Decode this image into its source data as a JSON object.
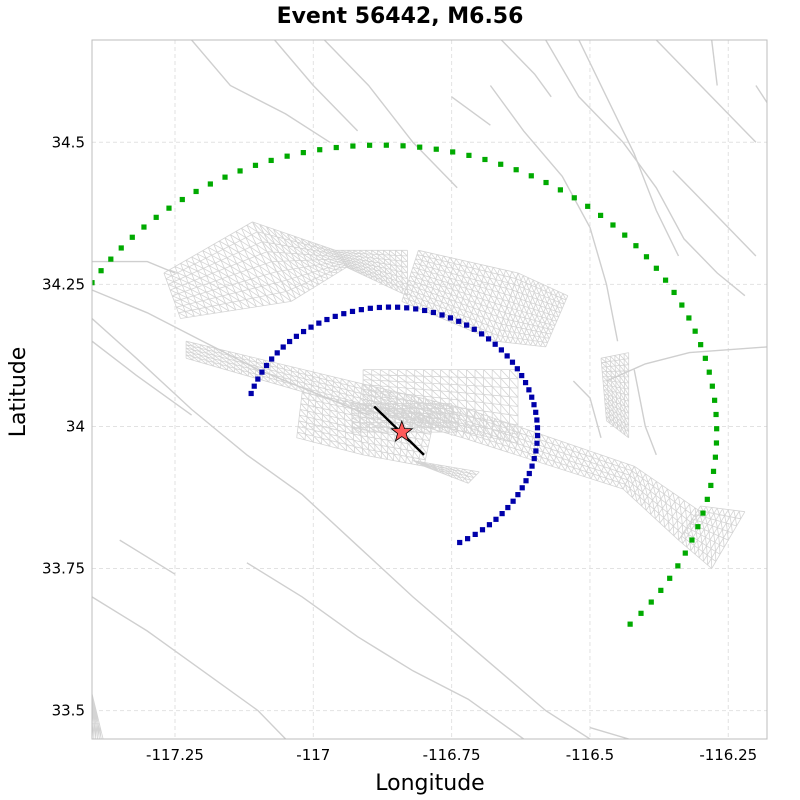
{
  "chart_data": {
    "type": "scatter",
    "title": "Event 56442, M6.56",
    "xlabel": "Longitude",
    "ylabel": "Latitude",
    "xlim": [
      -117.4,
      -116.18
    ],
    "ylim": [
      33.45,
      34.68
    ],
    "x_ticks": [
      -117.25,
      -117,
      -116.75,
      -116.5,
      -116.25
    ],
    "x_tick_labels": [
      "-117.25",
      "-117",
      "-116.75",
      "-116.5",
      "-116.25"
    ],
    "y_ticks": [
      33.5,
      33.75,
      34,
      34.25,
      34.5
    ],
    "y_tick_labels": [
      "33.5",
      "33.75",
      "34",
      "34.25",
      "34.5"
    ],
    "grid": true,
    "legend": "none",
    "colors": {
      "inner_arc": "#0000aa",
      "outer_arc": "#00aa00",
      "faults": "#cfcfcf",
      "epicenter": "#ff5a5a",
      "rupture_trace": "#000000"
    },
    "series": [
      {
        "color": "#0000aa",
        "marker": "square",
        "arc": {
          "center": [
            -116.86,
            33.99
          ],
          "radius_deg": 0.22,
          "start_angle_deg": 162,
          "end_angle_deg": -62,
          "points": 64
        }
      },
      {
        "color": "#00aa00",
        "marker": "square",
        "arc": {
          "center": [
            -116.88,
            33.99
          ],
          "radius_deg": 0.505,
          "start_angle_deg": 160,
          "end_angle_deg": -42,
          "points": 72
        }
      }
    ],
    "epicenter": {
      "lon": -116.84,
      "lat": 33.99,
      "marker": "star"
    },
    "rupture_trace": [
      [
        -116.89,
        34.035
      ],
      [
        -116.8,
        33.95
      ]
    ],
    "fault_traces": [
      [
        [
          -117.22,
          34.68
        ],
        [
          -117.15,
          34.6
        ],
        [
          -117.05,
          34.55
        ],
        [
          -116.97,
          34.5
        ]
      ],
      [
        [
          -117.07,
          34.68
        ],
        [
          -117.0,
          34.6
        ],
        [
          -116.92,
          34.52
        ]
      ],
      [
        [
          -116.98,
          34.68
        ],
        [
          -116.9,
          34.6
        ],
        [
          -116.82,
          34.5
        ],
        [
          -116.74,
          34.42
        ]
      ],
      [
        [
          -116.68,
          34.6
        ],
        [
          -116.62,
          34.52
        ],
        [
          -116.55,
          34.44
        ],
        [
          -116.5,
          34.35
        ],
        [
          -116.47,
          34.25
        ],
        [
          -116.45,
          34.15
        ]
      ],
      [
        [
          -116.58,
          34.68
        ],
        [
          -116.52,
          34.58
        ],
        [
          -116.44,
          34.5
        ],
        [
          -116.38,
          34.42
        ],
        [
          -116.33,
          34.33
        ],
        [
          -116.27,
          34.27
        ],
        [
          -116.22,
          34.23
        ]
      ],
      [
        [
          -116.52,
          34.68
        ],
        [
          -116.47,
          34.58
        ],
        [
          -116.42,
          34.48
        ],
        [
          -116.38,
          34.38
        ],
        [
          -116.34,
          34.3
        ]
      ],
      [
        [
          -116.38,
          34.68
        ],
        [
          -116.3,
          34.6
        ],
        [
          -116.2,
          34.5
        ]
      ],
      [
        [
          -116.28,
          34.68
        ],
        [
          -116.27,
          34.6
        ]
      ],
      [
        [
          -116.2,
          34.6
        ],
        [
          -116.18,
          34.57
        ]
      ],
      [
        [
          -116.35,
          34.45
        ],
        [
          -116.28,
          34.38
        ],
        [
          -116.2,
          34.3
        ]
      ],
      [
        [
          -116.47,
          34.08
        ],
        [
          -116.4,
          34.11
        ],
        [
          -116.32,
          34.13
        ],
        [
          -116.18,
          34.14
        ]
      ],
      [
        [
          -116.53,
          34.08
        ],
        [
          -116.5,
          34.05
        ],
        [
          -116.48,
          33.98
        ]
      ],
      [
        [
          -116.42,
          34.1
        ],
        [
          -116.4,
          34.0
        ],
        [
          -116.38,
          33.95
        ]
      ],
      [
        [
          -116.66,
          34.68
        ],
        [
          -116.6,
          34.62
        ],
        [
          -116.57,
          34.58
        ]
      ],
      [
        [
          -116.75,
          34.58
        ],
        [
          -116.68,
          34.53
        ]
      ],
      [
        [
          -117.4,
          34.29
        ],
        [
          -117.3,
          34.29
        ],
        [
          -117.25,
          34.27
        ]
      ],
      [
        [
          -117.4,
          34.24
        ],
        [
          -117.3,
          34.2
        ],
        [
          -117.2,
          34.15
        ],
        [
          -117.1,
          34.1
        ],
        [
          -117.0,
          34.06
        ],
        [
          -116.9,
          34.02
        ]
      ],
      [
        [
          -117.4,
          34.19
        ],
        [
          -117.32,
          34.12
        ],
        [
          -117.22,
          34.03
        ],
        [
          -117.12,
          33.95
        ],
        [
          -117.02,
          33.88
        ],
        [
          -116.92,
          33.79
        ],
        [
          -116.82,
          33.7
        ],
        [
          -116.7,
          33.6
        ],
        [
          -116.58,
          33.5
        ],
        [
          -116.5,
          33.45
        ]
      ],
      [
        [
          -117.4,
          34.15
        ],
        [
          -117.32,
          34.09
        ],
        [
          -117.22,
          34.02
        ]
      ],
      [
        [
          -117.4,
          33.7
        ],
        [
          -117.3,
          33.64
        ],
        [
          -117.2,
          33.57
        ],
        [
          -117.1,
          33.5
        ],
        [
          -117.05,
          33.45
        ]
      ],
      [
        [
          -117.35,
          33.8
        ],
        [
          -117.25,
          33.74
        ]
      ],
      [
        [
          -117.12,
          33.76
        ],
        [
          -117.02,
          33.7
        ],
        [
          -116.92,
          33.63
        ],
        [
          -116.82,
          33.57
        ],
        [
          -116.72,
          33.52
        ],
        [
          -116.62,
          33.45
        ]
      ],
      [
        [
          -116.5,
          33.47
        ],
        [
          -116.43,
          33.45
        ]
      ]
    ],
    "fault_meshes": [
      {
        "corners": [
          [
            -117.27,
            34.27
          ],
          [
            -117.11,
            34.36
          ],
          [
            -117.04,
            34.22
          ],
          [
            -117.24,
            34.19
          ]
        ],
        "rows": 8,
        "cols": 16
      },
      {
        "corners": [
          [
            -117.11,
            34.36
          ],
          [
            -116.96,
            34.31
          ],
          [
            -116.94,
            34.28
          ],
          [
            -117.04,
            34.22
          ]
        ],
        "rows": 8,
        "cols": 12
      },
      {
        "corners": [
          [
            -116.96,
            34.31
          ],
          [
            -116.83,
            34.31
          ],
          [
            -116.83,
            34.23
          ],
          [
            -116.94,
            34.28
          ]
        ],
        "rows": 8,
        "cols": 12
      },
      {
        "corners": [
          [
            -116.81,
            34.31
          ],
          [
            -116.63,
            34.27
          ],
          [
            -116.67,
            34.15
          ],
          [
            -116.84,
            34.22
          ]
        ],
        "rows": 12,
        "cols": 16
      },
      {
        "corners": [
          [
            -116.63,
            34.27
          ],
          [
            -116.54,
            34.23
          ],
          [
            -116.58,
            34.14
          ],
          [
            -116.67,
            34.15
          ]
        ],
        "rows": 12,
        "cols": 10
      },
      {
        "corners": [
          [
            -116.48,
            34.12
          ],
          [
            -116.43,
            34.13
          ],
          [
            -116.43,
            33.98
          ],
          [
            -116.47,
            34.01
          ]
        ],
        "rows": 14,
        "cols": 6
      },
      {
        "corners": [
          [
            -117.23,
            34.15
          ],
          [
            -116.72,
            34.03
          ],
          [
            -116.73,
            33.98
          ],
          [
            -117.23,
            34.12
          ]
        ],
        "rows": 5,
        "cols": 40
      },
      {
        "corners": [
          [
            -116.72,
            34.03
          ],
          [
            -116.42,
            33.93
          ],
          [
            -116.44,
            33.89
          ],
          [
            -116.73,
            33.98
          ]
        ],
        "rows": 5,
        "cols": 25
      },
      {
        "corners": [
          [
            -116.42,
            33.93
          ],
          [
            -116.3,
            33.85
          ],
          [
            -116.34,
            33.8
          ],
          [
            -116.44,
            33.89
          ]
        ],
        "rows": 5,
        "cols": 12
      },
      {
        "corners": [
          [
            -116.3,
            33.86
          ],
          [
            -116.22,
            33.85
          ],
          [
            -116.28,
            33.75
          ],
          [
            -116.34,
            33.8
          ]
        ],
        "rows": 8,
        "cols": 8
      },
      {
        "corners": [
          [
            -116.91,
            34.1
          ],
          [
            -116.63,
            34.1
          ],
          [
            -116.63,
            33.97
          ],
          [
            -116.91,
            34.03
          ]
        ],
        "rows": 8,
        "cols": 18
      },
      {
        "corners": [
          [
            -116.93,
            34.04
          ],
          [
            -116.75,
            34.04
          ],
          [
            -116.74,
            33.99
          ],
          [
            -116.93,
            33.99
          ]
        ],
        "rows": 6,
        "cols": 12
      },
      {
        "corners": [
          [
            -117.02,
            34.06
          ],
          [
            -116.92,
            34.04
          ],
          [
            -116.91,
            33.95
          ],
          [
            -117.03,
            33.98
          ]
        ],
        "rows": 8,
        "cols": 8
      },
      {
        "corners": [
          [
            -116.92,
            34.04
          ],
          [
            -116.78,
            34.02
          ],
          [
            -116.8,
            33.93
          ],
          [
            -116.91,
            33.95
          ]
        ],
        "rows": 8,
        "cols": 10
      },
      {
        "corners": [
          [
            -116.82,
            33.94
          ],
          [
            -116.7,
            33.92
          ],
          [
            -116.72,
            33.9
          ],
          [
            -116.8,
            33.93
          ]
        ],
        "rows": 4,
        "cols": 8
      },
      {
        "corners": [
          [
            -117.4,
            33.53
          ],
          [
            -117.38,
            33.45
          ],
          [
            -117.4,
            33.45
          ],
          [
            -117.4,
            33.53
          ]
        ],
        "rows": 6,
        "cols": 3
      }
    ]
  }
}
